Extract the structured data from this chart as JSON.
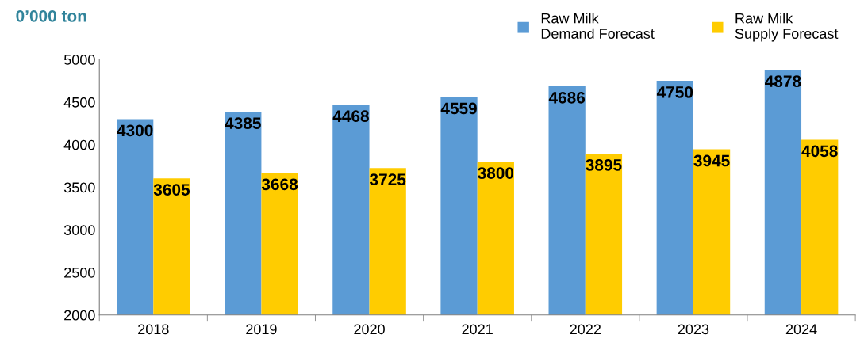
{
  "chart_data": {
    "type": "bar",
    "ylabel": "0’000 ton",
    "categories": [
      "2018",
      "2019",
      "2020",
      "2021",
      "2022",
      "2023",
      "2024"
    ],
    "series": [
      {
        "name": "Raw Milk\nDemand Forecast",
        "color": "#5b9bd5",
        "values": [
          4300,
          4385,
          4468,
          4559,
          4686,
          4750,
          4878
        ]
      },
      {
        "name": "Raw Milk\nSupply Forecast",
        "color": "#ffcc00",
        "values": [
          3605,
          3668,
          3725,
          3800,
          3895,
          3945,
          4058
        ]
      }
    ],
    "ylim": [
      2000,
      5000
    ],
    "yticks": [
      2000,
      2500,
      3000,
      3500,
      4000,
      4500,
      5000
    ],
    "data_labels": true,
    "legend": "top right",
    "grid": false
  }
}
